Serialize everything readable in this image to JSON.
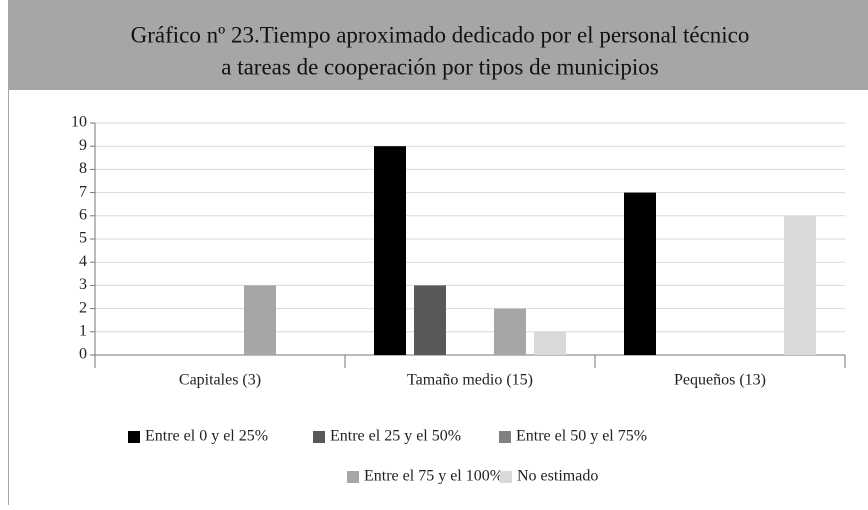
{
  "chart_data": {
    "type": "bar",
    "title": [
      "Gráfico nº 23.Tiempo aproximado dedicado por el personal técnico",
      "a tareas de cooperación por tipos de municipios"
    ],
    "categories": [
      "Capitales (3)",
      "Tamaño medio (15)",
      "Pequeños (13)"
    ],
    "series": [
      {
        "name": "Entre el 0 y el 25%",
        "color": "#000000",
        "values": [
          0,
          9,
          7
        ]
      },
      {
        "name": "Entre el 25 y el 50%",
        "color": "#595959",
        "values": [
          0,
          3,
          0
        ]
      },
      {
        "name": "Entre el 50 y el 75%",
        "color": "#7f7f7f",
        "values": [
          0,
          0,
          0
        ]
      },
      {
        "name": "Entre el 75 y el 100%",
        "color": "#a6a6a6",
        "values": [
          3,
          2,
          0
        ]
      },
      {
        "name": "No estimado",
        "color": "#d9d9d9",
        "values": [
          0,
          1,
          6
        ]
      }
    ],
    "ylim": [
      0,
      10
    ],
    "yticks": [
      0,
      1,
      2,
      3,
      4,
      5,
      6,
      7,
      8,
      9,
      10
    ],
    "grid": true
  }
}
